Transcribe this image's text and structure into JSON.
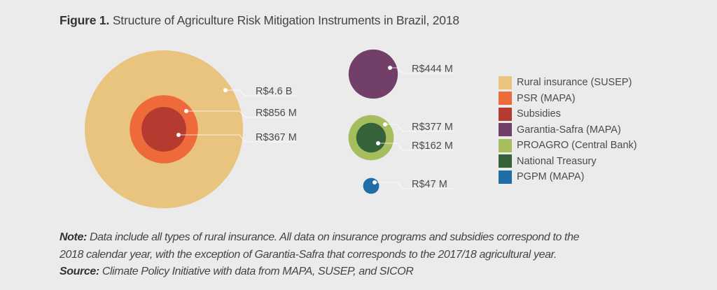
{
  "title": {
    "prefix": "Figure 1.",
    "text": "Structure of Agriculture Risk Mitigation Instruments in Brazil, 2018"
  },
  "chart_data": {
    "type": "bubble",
    "title": "Structure of Agriculture Risk Mitigation Instruments in Brazil, 2018",
    "unit": "BRL millions",
    "groups": [
      {
        "items": [
          {
            "name": "Rural insurance (SUSEP)",
            "value": 4600,
            "label": "R$4.6 B",
            "color": "#e9c47f"
          },
          {
            "name": "PSR (MAPA)",
            "value": 856,
            "label": "R$856 M",
            "color": "#ef6a3a"
          },
          {
            "name": "Subsidies",
            "value": 367,
            "label": "R$367 M",
            "color": "#b53a30"
          }
        ]
      },
      {
        "items": [
          {
            "name": "Garantia-Safra (MAPA)",
            "value": 444,
            "label": "R$444 M",
            "color": "#713f68"
          }
        ]
      },
      {
        "items": [
          {
            "name": "PROAGRO (Central Bank)",
            "value": 377,
            "label": "R$377 M",
            "color": "#a6bd5e"
          },
          {
            "name": "National Treasury",
            "value": 162,
            "label": "R$162 M",
            "color": "#366239"
          }
        ]
      },
      {
        "items": [
          {
            "name": "PGPM (MAPA)",
            "value": 47,
            "label": "R$47 M",
            "color": "#1f6ea8"
          }
        ]
      }
    ],
    "legend": [
      {
        "label": "Rural insurance (SUSEP)",
        "color": "#e9c47f"
      },
      {
        "label": "PSR (MAPA)",
        "color": "#ef6a3a"
      },
      {
        "label": "Subsidies",
        "color": "#b53a30"
      },
      {
        "label": "Garantia-Safra (MAPA)",
        "color": "#713f68"
      },
      {
        "label": "PROAGRO (Central Bank)",
        "color": "#a6bd5e"
      },
      {
        "label": "National Treasury",
        "color": "#366239"
      },
      {
        "label": "PGPM (MAPA)",
        "color": "#1f6ea8"
      }
    ],
    "legend_position": "right"
  },
  "notes": {
    "note_label": "Note:",
    "note_line1": "Data include all types of rural insurance. All data on insurance programs and subsidies correspond to the",
    "note_line2": "2018 calendar year, with the exception of Garantia-Safra that corresponds to the 2017/18 agricultural year.",
    "source_label": "Source:",
    "source_text": "Climate Policy Initiative with data from MAPA, SUSEP, and SICOR"
  }
}
